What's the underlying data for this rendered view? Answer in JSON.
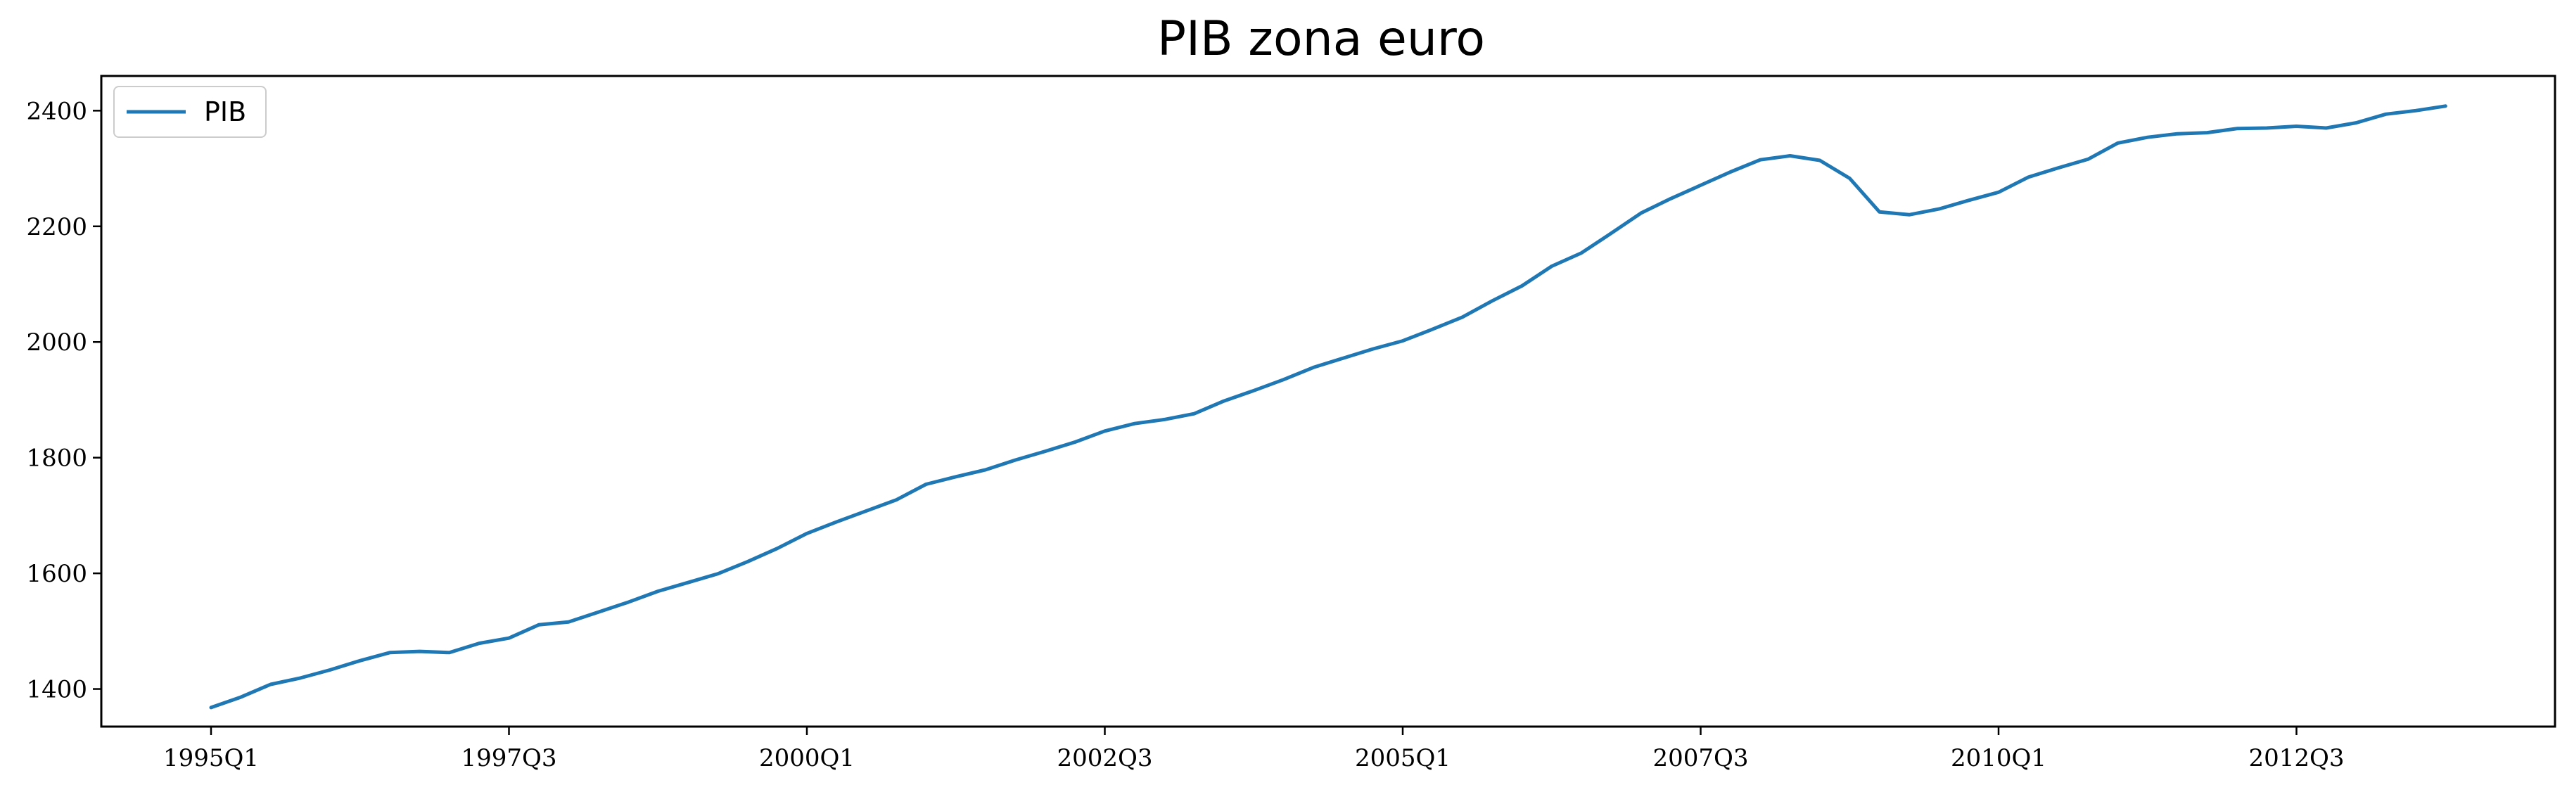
{
  "chart_data": {
    "type": "line",
    "title": "PIB zona euro",
    "xlabel": "",
    "ylabel": "",
    "x_tick_labels": [
      "1995Q1",
      "1997Q3",
      "2000Q1",
      "2002Q3",
      "2005Q1",
      "2007Q3",
      "2010Q1",
      "2012Q3"
    ],
    "y_ticks": [
      1400,
      1600,
      1800,
      2000,
      2200,
      2400
    ],
    "ylim": [
      1335,
      2460
    ],
    "x": [
      "1995Q1",
      "1995Q2",
      "1995Q3",
      "1995Q4",
      "1996Q1",
      "1996Q2",
      "1996Q3",
      "1996Q4",
      "1997Q1",
      "1997Q2",
      "1997Q3",
      "1997Q4",
      "1998Q1",
      "1998Q2",
      "1998Q3",
      "1998Q4",
      "1999Q1",
      "1999Q2",
      "1999Q3",
      "1999Q4",
      "2000Q1",
      "2000Q2",
      "2000Q3",
      "2000Q4",
      "2001Q1",
      "2001Q2",
      "2001Q3",
      "2001Q4",
      "2002Q1",
      "2002Q2",
      "2002Q3",
      "2002Q4",
      "2003Q1",
      "2003Q2",
      "2003Q3",
      "2003Q4",
      "2004Q1",
      "2004Q2",
      "2004Q3",
      "2004Q4",
      "2005Q1",
      "2005Q2",
      "2005Q3",
      "2005Q4",
      "2006Q1",
      "2006Q2",
      "2006Q3",
      "2006Q4",
      "2007Q1",
      "2007Q2",
      "2007Q3",
      "2007Q4",
      "2008Q1",
      "2008Q2",
      "2008Q3",
      "2008Q4",
      "2009Q1",
      "2009Q2",
      "2009Q3",
      "2009Q4",
      "2010Q1",
      "2010Q2",
      "2010Q3",
      "2010Q4",
      "2011Q1",
      "2011Q2",
      "2011Q3",
      "2011Q4",
      "2012Q1",
      "2012Q2",
      "2012Q3",
      "2012Q4",
      "2013Q1",
      "2013Q2",
      "2013Q3",
      "2013Q4"
    ],
    "legend": "upper-left",
    "grid": false,
    "series": [
      {
        "name": "PIB",
        "color": "#1f77b4",
        "values": [
          1368,
          1386,
          1408,
          1419,
          1433,
          1449,
          1463,
          1465,
          1463,
          1479,
          1488,
          1511,
          1516,
          1533,
          1550,
          1569,
          1584,
          1599,
          1620,
          1643,
          1669,
          1689,
          1708,
          1727,
          1754,
          1767,
          1779,
          1796,
          1811,
          1827,
          1846,
          1859,
          1866,
          1876,
          1898,
          1916,
          1935,
          1956,
          1972,
          1988,
          2002,
          2022,
          2043,
          2071,
          2097,
          2131,
          2154,
          2188,
          2223,
          2248,
          2271,
          2294,
          2315,
          2322,
          2314,
          2283,
          2225,
          2220,
          2230,
          2245,
          2259,
          2285,
          2301,
          2316,
          2344,
          2354,
          2360,
          2362,
          2369,
          2370,
          2373,
          2370,
          2379,
          2394,
          2400,
          2408
        ]
      }
    ]
  }
}
